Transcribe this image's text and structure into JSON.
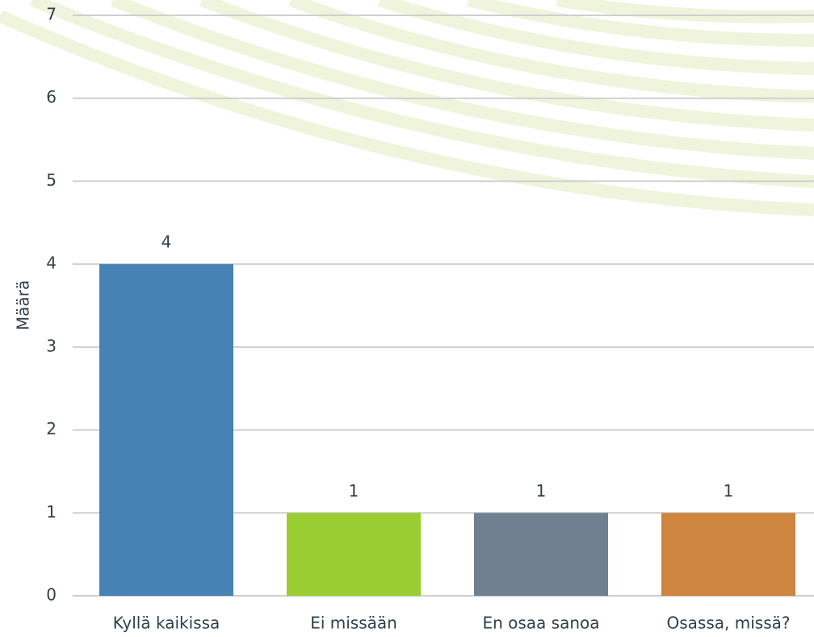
{
  "chart_data": {
    "type": "bar",
    "y_label": "Määrä",
    "categories": [
      "Kyllä kaikissa",
      "Ei missään",
      "En osaa sanoa",
      "Osassa, missä?"
    ],
    "values": [
      4,
      1,
      1,
      1
    ],
    "colors": [
      "#4682b4",
      "#9acd32",
      "#708090",
      "#cd853f"
    ],
    "ylim": [
      0,
      7
    ],
    "yticks": [
      0,
      1,
      2,
      3,
      4,
      5,
      6,
      7
    ],
    "grid": true
  }
}
